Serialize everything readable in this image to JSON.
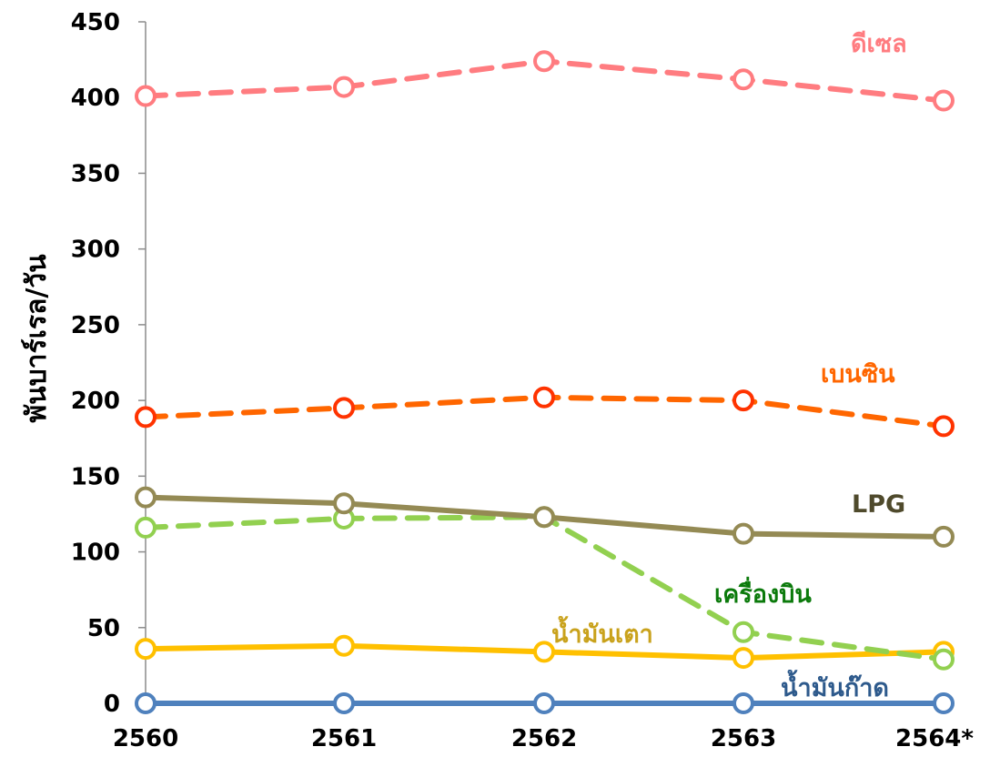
{
  "chart_data": {
    "type": "line",
    "title": "",
    "xlabel": "",
    "ylabel": "พันบาร์เรล/วัน",
    "ylim": [
      0,
      450
    ],
    "yticks": [
      0,
      50,
      100,
      150,
      200,
      250,
      300,
      350,
      400,
      450
    ],
    "categories": [
      "2560",
      "2561",
      "2562",
      "2563",
      "2564*"
    ],
    "grid": false,
    "legend": "inline-labels",
    "series": [
      {
        "name": "ดีเซล",
        "values": [
          401,
          407,
          424,
          412,
          398
        ],
        "color": "#FF7C80",
        "dashed": true
      },
      {
        "name": "เบนซิน",
        "values": [
          189,
          195,
          202,
          200,
          183
        ],
        "color": "#FF6600",
        "marker_color": "#FF3300",
        "label_color": "#FF6600",
        "dashed": true
      },
      {
        "name": "LPG",
        "values": [
          136,
          132,
          123,
          112,
          110
        ],
        "color": "#948A54",
        "label_color": "#4F4A2C",
        "dashed": false
      },
      {
        "name": "เครื่องบิน",
        "values": [
          116,
          122,
          123,
          47,
          29
        ],
        "color": "#92D050",
        "label_color": "#0B7A0B",
        "dashed": true
      },
      {
        "name": "น้ำมันเตา",
        "values": [
          36,
          38,
          34,
          30,
          34
        ],
        "color": "#FFC000",
        "label_color": "#C9A21C",
        "dashed": false
      },
      {
        "name": "น้ำมันก๊าด",
        "values": [
          0,
          0,
          0,
          0,
          0
        ],
        "color": "#4F81BD",
        "label_color": "#2E5A8C",
        "dashed": false
      }
    ]
  }
}
